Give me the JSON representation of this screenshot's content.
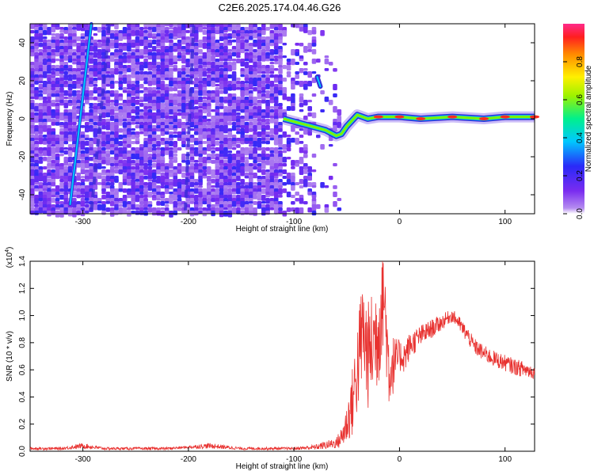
{
  "title": "C2E6.2025.174.04.46.G26",
  "colors": {
    "snr_line": "#e8312f",
    "track": "#2f2fd8",
    "noise_dark": "#6a1fd6",
    "noise_light": "#c9a8f2"
  },
  "chart_data": [
    {
      "type": "heatmap",
      "title": "C2E6.2025.174.04.46.G26",
      "xlabel": "Height of straight line (km)",
      "ylabel": "Frequency (Hz)",
      "xlim": [
        -350,
        128
      ],
      "ylim": [
        -50,
        50
      ],
      "xticks": [
        -300,
        -200,
        -100,
        0,
        100
      ],
      "yticks": [
        -40,
        -20,
        0,
        20,
        40
      ],
      "colorbar": {
        "label": "Normalized spectral amplitude",
        "range": [
          0,
          1
        ],
        "ticks": [
          "0.0",
          "0.2",
          "0.4",
          "0.6",
          "0.8"
        ],
        "colormap": "rainbow (purple - blue - cyan - green - yellow - red - magenta)"
      },
      "features": [
        {
          "name": "main trace",
          "x": [
            -110,
            -90,
            -70,
            -60,
            -55,
            -50,
            -40,
            -30,
            -20,
            0,
            20,
            50,
            80,
            100,
            128
          ],
          "y": [
            0,
            -3,
            -6,
            -9,
            -8,
            -4,
            2,
            0,
            1,
            1,
            0,
            1,
            0,
            1,
            1
          ],
          "amplitude": "0.6-1.0"
        },
        {
          "name": "spur",
          "x": [
            -78,
            -75
          ],
          "y": [
            22,
            17
          ],
          "amplitude": "0.5"
        },
        {
          "name": "diagonal streak",
          "x": [
            -312,
            -292
          ],
          "y": [
            -45,
            50
          ],
          "amplitude": "0.3"
        }
      ]
    },
    {
      "type": "line",
      "xlabel": "Height of straight line (km)",
      "ylabel": "SNR (10 * v/v)",
      "scale_label": "(x10",
      "scale_exp": "4",
      "xlim": [
        -350,
        128
      ],
      "ylim": [
        0,
        1.4
      ],
      "xticks": [
        -300,
        -200,
        -100,
        0,
        100
      ],
      "yticks": [
        "0.0",
        "0.2",
        "0.4",
        "0.6",
        "0.8",
        "1.0",
        "1.2",
        "1.4"
      ],
      "series": [
        {
          "x": [
            -350,
            -320,
            -300,
            -280,
            -250,
            -220,
            -200,
            -180,
            -150,
            -120,
            -100,
            -80,
            -60,
            -55,
            -50,
            -45,
            -40,
            -35,
            -30,
            -25,
            -20,
            -15,
            -10,
            -5,
            0,
            5,
            10,
            20,
            30,
            40,
            45,
            50,
            55,
            60,
            65,
            70,
            80,
            90,
            100,
            110,
            120,
            128
          ],
          "y": [
            0.02,
            0.02,
            0.04,
            0.02,
            0.02,
            0.02,
            0.03,
            0.04,
            0.02,
            0.02,
            0.02,
            0.03,
            0.06,
            0.1,
            0.2,
            0.35,
            0.6,
            0.9,
            0.7,
            0.8,
            0.9,
            1.2,
            0.6,
            0.65,
            0.7,
            0.7,
            0.78,
            0.85,
            0.9,
            0.95,
            0.98,
            1.0,
            0.96,
            0.9,
            0.85,
            0.78,
            0.72,
            0.68,
            0.65,
            0.62,
            0.6,
            0.58
          ],
          "noise_amplitude": [
            0.01,
            0.01,
            0.02,
            0.01,
            0.01,
            0.01,
            0.01,
            0.02,
            0.01,
            0.01,
            0.01,
            0.02,
            0.04,
            0.08,
            0.15,
            0.25,
            0.35,
            0.4,
            0.4,
            0.4,
            0.45,
            0.4,
            0.3,
            0.2,
            0.12,
            0.12,
            0.1,
            0.08,
            0.07,
            0.06,
            0.05,
            0.05,
            0.05,
            0.06,
            0.06,
            0.06,
            0.06,
            0.06,
            0.06,
            0.06,
            0.06,
            0.05
          ]
        }
      ]
    }
  ]
}
